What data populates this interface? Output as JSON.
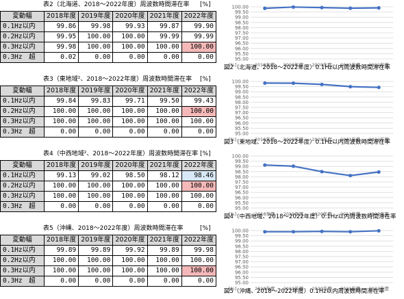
{
  "header_labels": {
    "category": "変動幅",
    "years": [
      "2018年度",
      "2019年度",
      "2020年度",
      "2021年度",
      "2022年度"
    ]
  },
  "row_labels": [
    "0.1Hz以内",
    "0.2Hz以内",
    "0.3Hz以内",
    "0.3Hz　超"
  ],
  "unit": "[%]",
  "colors": {
    "line": "#4472c4",
    "pink_cell": "#f4b8b8",
    "blue_cell": "#d9e8f6",
    "header_gray": "#d9d9d9"
  },
  "blocks": [
    {
      "table_title": "表2（北海道、2018～2022年度）周波数時間滞在率",
      "rows": [
        [
          "99.86",
          "99.98",
          "99.93",
          "99.87",
          "99.90"
        ],
        [
          "99.95",
          "100.00",
          "100.00",
          "99.99",
          "99.99"
        ],
        [
          "99.98",
          "100.00",
          "100.00",
          "100.00",
          "100.00"
        ],
        [
          "0.02",
          "0.00",
          "0.00",
          "0.00",
          "0.00"
        ]
      ],
      "highlights": [
        {
          "row": 2,
          "col": 4,
          "color": "pink"
        }
      ],
      "caption": "図2（北海道、2018～2022年度）0.1Hz以内周波数時間滞在率"
    },
    {
      "table_title": "表3（東地域²、2018～2022年度）周波数時間滞在率",
      "rows": [
        [
          "99.84",
          "99.83",
          "99.71",
          "99.50",
          "99.43"
        ],
        [
          "100.00",
          "100.00",
          "100.00",
          "100.00",
          "100.00"
        ],
        [
          "100.00",
          "100.00",
          "100.00",
          "100.00",
          "100.00"
        ],
        [
          "0.00",
          "0.00",
          "0.00",
          "0.00",
          "0.00"
        ]
      ],
      "highlights": [
        {
          "row": 1,
          "col": 4,
          "color": "pink"
        }
      ],
      "caption": "図3（東地域、2018～2022年度）0.1Hz以内周波数時間滞在率"
    },
    {
      "table_title": "表4（中西地域²、2018～2022年度）周波数時間滞在率",
      "rows": [
        [
          "99.13",
          "99.02",
          "98.50",
          "98.12",
          "98.46"
        ],
        [
          "100.00",
          "100.00",
          "100.00",
          "100.00",
          "100.00"
        ],
        [
          "100.00",
          "100.00",
          "100.00",
          "100.00",
          "100.00"
        ],
        [
          "0.00",
          "0.00",
          "0.00",
          "0.00",
          "0.00"
        ]
      ],
      "highlights": [
        {
          "row": 0,
          "col": 4,
          "color": "blue"
        },
        {
          "row": 1,
          "col": 4,
          "color": "pink"
        }
      ],
      "caption": "図4（中西地域、2018～2022年度）0.1Hz以内周波数時間滞在率"
    },
    {
      "table_title": "表5（沖縄、2018～2022年度）周波数時間滞在率",
      "rows": [
        [
          "99.89",
          "99.89",
          "99.92",
          "99.89",
          "99.98"
        ],
        [
          "100.00",
          "100.00",
          "100.00",
          "100.00",
          "100.00"
        ],
        [
          "100.00",
          "100.00",
          "100.00",
          "100.00",
          "100.00"
        ],
        [
          "0.00",
          "0.00",
          "0.00",
          "0.00",
          "0.00"
        ]
      ],
      "highlights": [
        {
          "row": 2,
          "col": 4,
          "color": "pink"
        }
      ],
      "caption": "図5（沖縄、2018～2022年度）0.1Hz以内周波数時間滞在率"
    }
  ],
  "chart_data": [
    {
      "type": "line",
      "categories": [
        "2018年度",
        "2019年度",
        "2020年度",
        "2021年度",
        "2022年度"
      ],
      "series": [
        {
          "values": [
            99.86,
            99.98,
            99.93,
            99.87,
            99.9
          ]
        }
      ],
      "y_ticks": [
        "100.00",
        "99.50",
        "99.00",
        "98.50",
        "98.00",
        "97.50",
        "97.00",
        "96.50",
        "96.00",
        "95.50",
        "95.00"
      ],
      "ylim": [
        95,
        100
      ],
      "y_unit": "[%]",
      "grid": true
    },
    {
      "type": "line",
      "categories": [
        "2018年度",
        "2019年度",
        "2020年度",
        "2021年度",
        "2022年度"
      ],
      "series": [
        {
          "values": [
            99.84,
            99.83,
            99.71,
            99.5,
            99.43
          ]
        }
      ],
      "y_ticks": [
        "100.00",
        "99.50",
        "99.00",
        "98.50",
        "98.00",
        "97.50",
        "97.00",
        "96.50",
        "96.00",
        "95.50",
        "95.00"
      ],
      "ylim": [
        95,
        100
      ],
      "y_unit": "[%]",
      "grid": true
    },
    {
      "type": "line",
      "categories": [
        "2018年度",
        "2019年度",
        "2020年度",
        "2021年度",
        "2022年度"
      ],
      "series": [
        {
          "values": [
            99.13,
            99.02,
            98.5,
            98.12,
            98.46
          ]
        }
      ],
      "y_ticks": [
        "100.00",
        "99.50",
        "99.00",
        "98.50",
        "98.00",
        "97.50",
        "97.00",
        "96.50",
        "96.00",
        "95.50",
        "95.00"
      ],
      "ylim": [
        95,
        100
      ],
      "y_unit": "[%]",
      "grid": true
    },
    {
      "type": "line",
      "categories": [
        "2018年度",
        "2019年度",
        "2020年度",
        "2021年度",
        "2022年度"
      ],
      "series": [
        {
          "values": [
            99.89,
            99.89,
            99.92,
            99.89,
            99.98
          ]
        }
      ],
      "y_ticks": [
        "100.00",
        "99.50",
        "99.00",
        "98.50",
        "98.00",
        "97.50",
        "97.00",
        "96.50",
        "96.00",
        "95.50",
        "95.00"
      ],
      "ylim": [
        95,
        100
      ],
      "y_unit": "[%]",
      "grid": true
    }
  ]
}
